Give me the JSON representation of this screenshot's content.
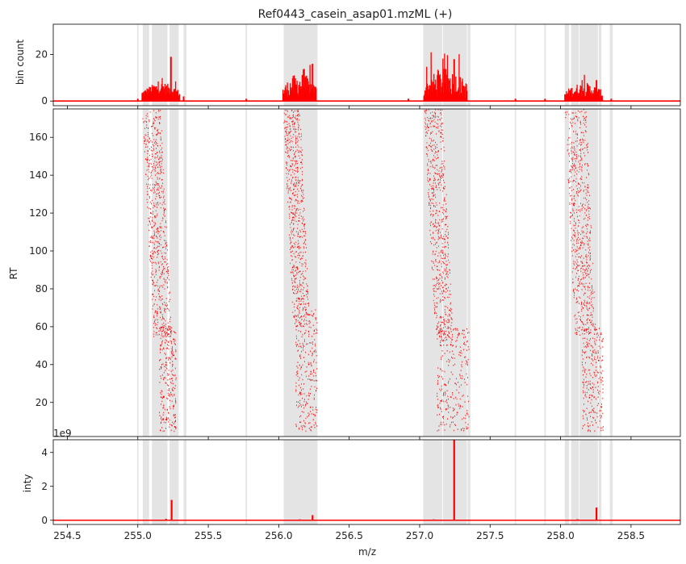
{
  "chart_data": {
    "type": "scatter",
    "title": "Ref0443_casein_asap01.mzML (+)",
    "xlabel": "m/z",
    "xlim": [
      254.4,
      258.85
    ],
    "x_ticks": [
      "254.5",
      "255.0",
      "255.5",
      "256.0",
      "256.5",
      "257.0",
      "257.5",
      "258.0",
      "258.5"
    ],
    "x_tick_values": [
      254.5,
      255.0,
      255.5,
      256.0,
      256.5,
      257.0,
      257.5,
      258.0,
      258.5
    ],
    "shaded_regions": [
      [
        254.995,
        255.005
      ],
      [
        255.035,
        255.08
      ],
      [
        255.1,
        255.21
      ],
      [
        255.225,
        255.29
      ],
      [
        255.325,
        255.345
      ],
      [
        255.765,
        255.775
      ],
      [
        256.035,
        256.255
      ],
      [
        256.255,
        256.275
      ],
      [
        257.025,
        257.16
      ],
      [
        257.165,
        257.335
      ],
      [
        257.34,
        257.36
      ],
      [
        257.675,
        257.685
      ],
      [
        257.885,
        257.895
      ],
      [
        258.03,
        258.06
      ],
      [
        258.075,
        258.13
      ],
      [
        258.135,
        258.265
      ],
      [
        258.27,
        258.29
      ],
      [
        258.35,
        258.37
      ]
    ],
    "panels": [
      {
        "name": "bin-count",
        "ylabel": "bin count",
        "ylim": [
          -2,
          33
        ],
        "y_ticks": [
          "0",
          "20"
        ],
        "y_tick_values": [
          0,
          20
        ],
        "series": {
          "color": "#ff0000",
          "clusters": [
            {
              "start": 255.03,
              "end": 255.3,
              "peak_x": 255.235,
              "peak": 19,
              "typical": [
                3,
                8
              ]
            },
            {
              "start": 256.03,
              "end": 256.27,
              "peak_x": 256.24,
              "peak": 16,
              "typical": [
                2,
                12
              ]
            },
            {
              "start": 257.03,
              "end": 257.34,
              "peak_x": 257.245,
              "peak": 18,
              "typical": [
                2,
                14
              ]
            },
            {
              "start": 258.03,
              "end": 258.3,
              "peak_x": 258.255,
              "peak": 9,
              "typical": [
                2,
                8
              ]
            }
          ],
          "isolated": [
            [
              255.0,
              1
            ],
            [
              255.325,
              2
            ],
            [
              255.77,
              1
            ],
            [
              256.92,
              1
            ],
            [
              257.68,
              1
            ],
            [
              257.89,
              1
            ],
            [
              258.36,
              1
            ]
          ]
        }
      },
      {
        "name": "rt-scatter",
        "ylabel": "RT",
        "ylim": [
          2,
          175
        ],
        "y_ticks": [
          "20",
          "40",
          "60",
          "80",
          "100",
          "120",
          "140",
          "160"
        ],
        "y_tick_values": [
          20,
          40,
          60,
          80,
          100,
          120,
          140,
          160
        ],
        "series": {
          "color": "#ff0000",
          "groups": [
            {
              "x_band": [
                255.03,
                255.24
              ],
              "rt": [
                55,
                175
              ],
              "drift": 0.08,
              "tail_x": [
                255.15,
                255.27
              ],
              "tail_rt": [
                5,
                60
              ]
            },
            {
              "x_band": [
                256.03,
                256.22
              ],
              "rt": [
                60,
                175
              ],
              "drift": 0.07,
              "tail_x": [
                256.12,
                256.27
              ],
              "tail_rt": [
                5,
                70
              ]
            },
            {
              "x_band": [
                257.03,
                257.24
              ],
              "rt": [
                50,
                175
              ],
              "drift": 0.08,
              "tail_x": [
                257.12,
                257.35
              ],
              "tail_rt": [
                5,
                60
              ]
            },
            {
              "x_band": [
                258.03,
                258.25
              ],
              "rt": [
                55,
                175
              ],
              "drift": 0.07,
              "tail_x": [
                258.15,
                258.3
              ],
              "tail_rt": [
                5,
                60
              ]
            }
          ]
        }
      },
      {
        "name": "intensity",
        "ylabel": "inty",
        "offset_label": "1e9",
        "ylim": [
          -0.25,
          4.75
        ],
        "y_ticks": [
          "0",
          "2",
          "4"
        ],
        "y_tick_values": [
          0,
          2,
          4
        ],
        "series": {
          "color": "#ff0000",
          "peaks": [
            [
              255.24,
              1.2
            ],
            [
              256.24,
              0.3
            ],
            [
              257.245,
              4.75
            ],
            [
              258.255,
              0.75
            ],
            [
              255.2,
              0.08
            ],
            [
              256.15,
              0.05
            ],
            [
              257.1,
              0.05
            ],
            [
              258.12,
              0.06
            ]
          ]
        }
      }
    ]
  }
}
